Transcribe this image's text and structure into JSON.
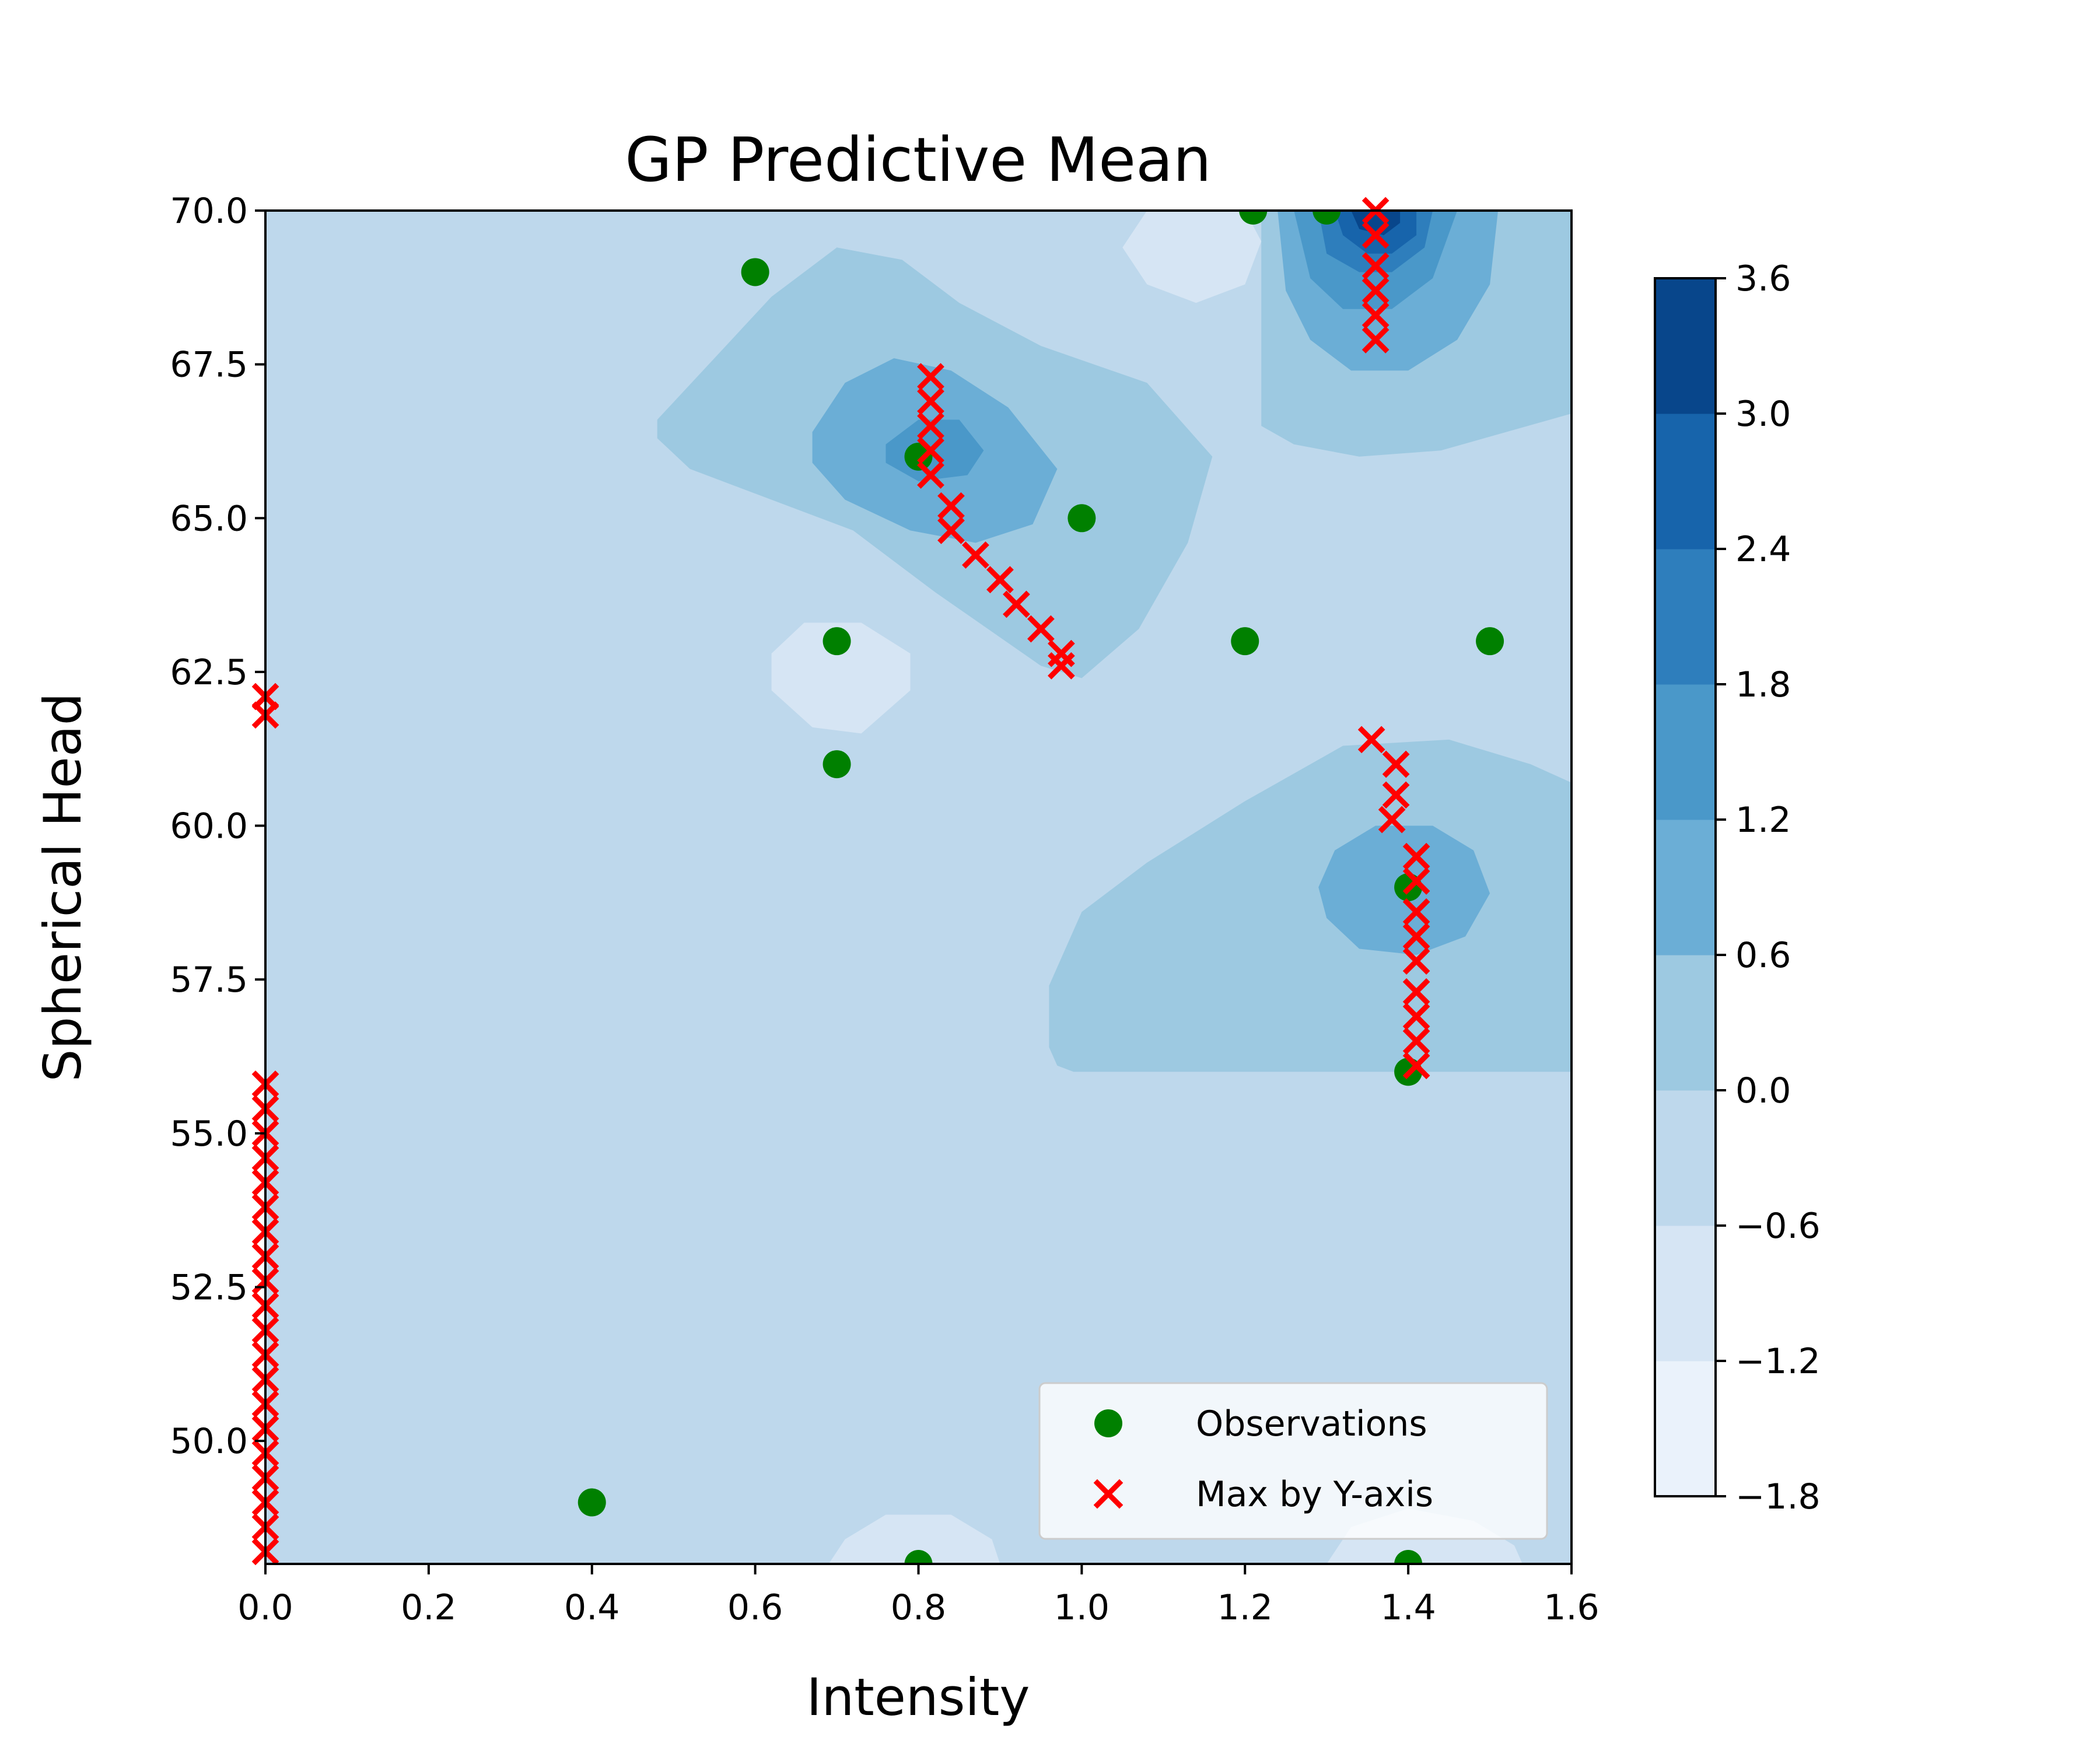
{
  "chart_data": {
    "type": "contour",
    "title": "GP Predictive Mean",
    "xlabel": "Intensity",
    "ylabel": "Spherical Head",
    "xlim": [
      0.0,
      1.6
    ],
    "ylim": [
      48.0,
      70.0
    ],
    "x_ticks": [
      "0.0",
      "0.2",
      "0.4",
      "0.6",
      "0.8",
      "1.0",
      "1.2",
      "1.4",
      "1.6"
    ],
    "y_ticks": [
      "50.0",
      "52.5",
      "55.0",
      "57.5",
      "60.0",
      "62.5",
      "65.0",
      "67.5",
      "70.0"
    ],
    "colorbar": {
      "levels": [
        -1.8,
        -1.2,
        -0.6,
        0.0,
        0.6,
        1.2,
        1.8,
        2.4,
        3.0,
        3.6
      ],
      "tick_labels": [
        "3.6",
        "3.0",
        "2.4",
        "1.8",
        "1.2",
        "0.6",
        "0.0",
        "−0.6",
        "−1.2",
        "−1.8"
      ],
      "colors": [
        "#eaf2fb",
        "#d6e5f4",
        "#bed8ec",
        "#9dc9e1",
        "#6baed6",
        "#4a98c9",
        "#2e7ebc",
        "#1764ab",
        "#08468b"
      ]
    },
    "grid": false,
    "legend_position": "lower-right",
    "legend": [
      {
        "label": "Observations",
        "marker": "circle",
        "color": "#008000"
      },
      {
        "label": "Max by Y-axis",
        "marker": "x",
        "color": "#ff0000"
      }
    ],
    "series": [
      {
        "name": "Observations",
        "type": "scatter",
        "points": [
          [
            0.6,
            69.0
          ],
          [
            1.21,
            70.0
          ],
          [
            1.3,
            70.0
          ],
          [
            0.8,
            66.0
          ],
          [
            1.0,
            65.0
          ],
          [
            0.7,
            63.0
          ],
          [
            1.2,
            63.0
          ],
          [
            1.5,
            63.0
          ],
          [
            0.7,
            61.0
          ],
          [
            1.4,
            59.0
          ],
          [
            1.4,
            56.0
          ],
          [
            0.4,
            49.0
          ],
          [
            0.8,
            48.0
          ],
          [
            1.4,
            48.0
          ]
        ]
      },
      {
        "name": "Max by Y-axis",
        "type": "scatter",
        "points": [
          [
            1.36,
            70.0
          ],
          [
            1.36,
            69.6
          ],
          [
            1.36,
            69.1
          ],
          [
            1.36,
            68.7
          ],
          [
            1.36,
            68.3
          ],
          [
            1.36,
            67.9
          ],
          [
            0.815,
            67.3
          ],
          [
            0.815,
            66.9
          ],
          [
            0.815,
            66.5
          ],
          [
            0.815,
            66.1
          ],
          [
            0.815,
            65.7
          ],
          [
            0.84,
            65.2
          ],
          [
            0.84,
            64.8
          ],
          [
            0.87,
            64.4
          ],
          [
            0.9,
            64.0
          ],
          [
            0.92,
            63.6
          ],
          [
            0.95,
            63.2
          ],
          [
            0.975,
            62.8
          ],
          [
            0.975,
            62.6
          ],
          [
            0.0,
            62.1
          ],
          [
            0.0,
            61.8
          ],
          [
            1.355,
            61.4
          ],
          [
            1.385,
            61.0
          ],
          [
            1.385,
            60.5
          ],
          [
            1.38,
            60.1
          ],
          [
            1.41,
            59.5
          ],
          [
            1.41,
            59.1
          ],
          [
            1.41,
            58.6
          ],
          [
            1.41,
            58.2
          ],
          [
            1.41,
            57.8
          ],
          [
            1.41,
            57.3
          ],
          [
            1.41,
            56.9
          ],
          [
            1.41,
            56.5
          ],
          [
            1.41,
            56.1
          ],
          [
            0.0,
            55.8
          ],
          [
            0.0,
            55.4
          ],
          [
            0.0,
            55.0
          ],
          [
            0.0,
            54.6
          ],
          [
            0.0,
            54.2
          ],
          [
            0.0,
            53.8
          ],
          [
            0.0,
            53.4
          ],
          [
            0.0,
            53.0
          ],
          [
            0.0,
            52.6
          ],
          [
            0.0,
            52.2
          ],
          [
            0.0,
            51.8
          ],
          [
            0.0,
            51.4
          ],
          [
            0.0,
            51.0
          ],
          [
            0.0,
            50.6
          ],
          [
            0.0,
            50.2
          ],
          [
            0.0,
            49.8
          ],
          [
            0.0,
            49.4
          ],
          [
            0.0,
            49.0
          ],
          [
            0.0,
            48.6
          ],
          [
            0.0,
            48.2
          ]
        ]
      }
    ],
    "contour_regions": [
      {
        "level": 0,
        "color": "#d6e5f4",
        "polygon": [
          [
            1.08,
            70.0
          ],
          [
            1.05,
            69.4
          ],
          [
            1.08,
            68.8
          ],
          [
            1.14,
            68.5
          ],
          [
            1.2,
            68.8
          ],
          [
            1.22,
            69.5
          ],
          [
            1.2,
            70.0
          ]
        ]
      },
      {
        "level": -1,
        "color": "#eaf2fb",
        "polygon": [
          [
            1.12,
            70.0
          ],
          [
            1.11,
            69.5
          ],
          [
            1.14,
            69.0
          ],
          [
            1.18,
            69.0
          ],
          [
            1.19,
            69.6
          ],
          [
            1.18,
            70.0
          ]
        ]
      },
      {
        "level": 0,
        "color": "#d6e5f4",
        "polygon": [
          [
            0.62,
            62.8
          ],
          [
            0.66,
            63.3
          ],
          [
            0.73,
            63.3
          ],
          [
            0.79,
            62.8
          ],
          [
            0.79,
            62.2
          ],
          [
            0.73,
            61.5
          ],
          [
            0.67,
            61.6
          ],
          [
            0.62,
            62.2
          ]
        ]
      },
      {
        "level": 0,
        "color": "#d6e5f4",
        "polygon": [
          [
            0.69,
            48.0
          ],
          [
            0.71,
            48.4
          ],
          [
            0.76,
            48.8
          ],
          [
            0.84,
            48.8
          ],
          [
            0.89,
            48.4
          ],
          [
            0.9,
            48.0
          ]
        ]
      },
      {
        "level": 0,
        "color": "#d6e5f4",
        "polygon": [
          [
            1.3,
            48.0
          ],
          [
            1.33,
            48.6
          ],
          [
            1.4,
            48.9
          ],
          [
            1.48,
            48.7
          ],
          [
            1.53,
            48.3
          ],
          [
            1.54,
            48.0
          ]
        ]
      },
      {
        "level": 2,
        "color": "#9dc9e1",
        "polygon": [
          [
            0.48,
            66.6
          ],
          [
            0.55,
            67.6
          ],
          [
            0.62,
            68.6
          ],
          [
            0.7,
            69.4
          ],
          [
            0.78,
            69.2
          ],
          [
            0.85,
            68.5
          ],
          [
            0.95,
            67.8
          ],
          [
            1.08,
            67.2
          ],
          [
            1.16,
            66.0
          ],
          [
            1.13,
            64.6
          ],
          [
            1.07,
            63.2
          ],
          [
            1.0,
            62.4
          ],
          [
            0.95,
            62.6
          ],
          [
            0.82,
            63.8
          ],
          [
            0.72,
            64.8
          ],
          [
            0.6,
            65.4
          ],
          [
            0.52,
            65.8
          ],
          [
            0.48,
            66.3
          ]
        ]
      },
      {
        "level": 2,
        "color": "#9dc9e1",
        "polygon": [
          [
            1.22,
            70.0
          ],
          [
            1.22,
            66.5
          ],
          [
            1.26,
            66.2
          ],
          [
            1.34,
            66.0
          ],
          [
            1.44,
            66.1
          ],
          [
            1.52,
            66.4
          ],
          [
            1.6,
            66.7
          ],
          [
            1.6,
            70.0
          ]
        ]
      },
      {
        "level": 2,
        "color": "#9dc9e1",
        "polygon": [
          [
            0.96,
            56.4
          ],
          [
            0.96,
            57.4
          ],
          [
            1.0,
            58.6
          ],
          [
            1.08,
            59.4
          ],
          [
            1.2,
            60.4
          ],
          [
            1.32,
            61.3
          ],
          [
            1.45,
            61.4
          ],
          [
            1.55,
            61.0
          ],
          [
            1.6,
            60.7
          ],
          [
            1.6,
            56.0
          ],
          [
            0.99,
            56.0
          ],
          [
            0.97,
            56.1
          ]
        ]
      },
      {
        "level": 3,
        "color": "#6baed6",
        "polygon": [
          [
            0.67,
            66.4
          ],
          [
            0.71,
            67.2
          ],
          [
            0.77,
            67.6
          ],
          [
            0.84,
            67.4
          ],
          [
            0.91,
            66.8
          ],
          [
            0.97,
            65.8
          ],
          [
            0.94,
            64.9
          ],
          [
            0.87,
            64.6
          ],
          [
            0.79,
            64.8
          ],
          [
            0.71,
            65.3
          ],
          [
            0.67,
            65.9
          ]
        ]
      },
      {
        "level": 3,
        "color": "#6baed6",
        "polygon": [
          [
            1.24,
            70.0
          ],
          [
            1.25,
            68.7
          ],
          [
            1.28,
            67.9
          ],
          [
            1.33,
            67.4
          ],
          [
            1.4,
            67.4
          ],
          [
            1.46,
            67.9
          ],
          [
            1.5,
            68.8
          ],
          [
            1.51,
            70.0
          ]
        ]
      },
      {
        "level": 3,
        "color": "#6baed6",
        "polygon": [
          [
            1.29,
            59.0
          ],
          [
            1.31,
            59.6
          ],
          [
            1.36,
            60.0
          ],
          [
            1.43,
            60.0
          ],
          [
            1.48,
            59.6
          ],
          [
            1.5,
            58.9
          ],
          [
            1.47,
            58.2
          ],
          [
            1.41,
            57.9
          ],
          [
            1.34,
            58.0
          ],
          [
            1.3,
            58.5
          ]
        ]
      },
      {
        "level": 4,
        "color": "#4a98c9",
        "polygon": [
          [
            0.76,
            66.2
          ],
          [
            0.8,
            66.6
          ],
          [
            0.85,
            66.6
          ],
          [
            0.88,
            66.1
          ],
          [
            0.86,
            65.7
          ],
          [
            0.8,
            65.6
          ],
          [
            0.76,
            65.9
          ]
        ]
      },
      {
        "level": 4,
        "color": "#4a98c9",
        "polygon": [
          [
            1.26,
            70.0
          ],
          [
            1.28,
            68.9
          ],
          [
            1.32,
            68.4
          ],
          [
            1.38,
            68.4
          ],
          [
            1.43,
            68.9
          ],
          [
            1.46,
            70.0
          ]
        ]
      },
      {
        "level": 5,
        "color": "#2e7ebc",
        "polygon": [
          [
            1.29,
            70.0
          ],
          [
            1.3,
            69.3
          ],
          [
            1.34,
            69.0
          ],
          [
            1.38,
            69.0
          ],
          [
            1.42,
            69.4
          ],
          [
            1.43,
            70.0
          ]
        ]
      },
      {
        "level": 6,
        "color": "#1764ab",
        "polygon": [
          [
            1.31,
            70.0
          ],
          [
            1.32,
            69.6
          ],
          [
            1.35,
            69.3
          ],
          [
            1.38,
            69.3
          ],
          [
            1.41,
            69.6
          ],
          [
            1.41,
            70.0
          ]
        ]
      },
      {
        "level": 7,
        "color": "#08468b",
        "polygon": [
          [
            1.33,
            70.0
          ],
          [
            1.34,
            69.7
          ],
          [
            1.37,
            69.6
          ],
          [
            1.39,
            69.8
          ],
          [
            1.39,
            70.0
          ]
        ]
      }
    ]
  }
}
